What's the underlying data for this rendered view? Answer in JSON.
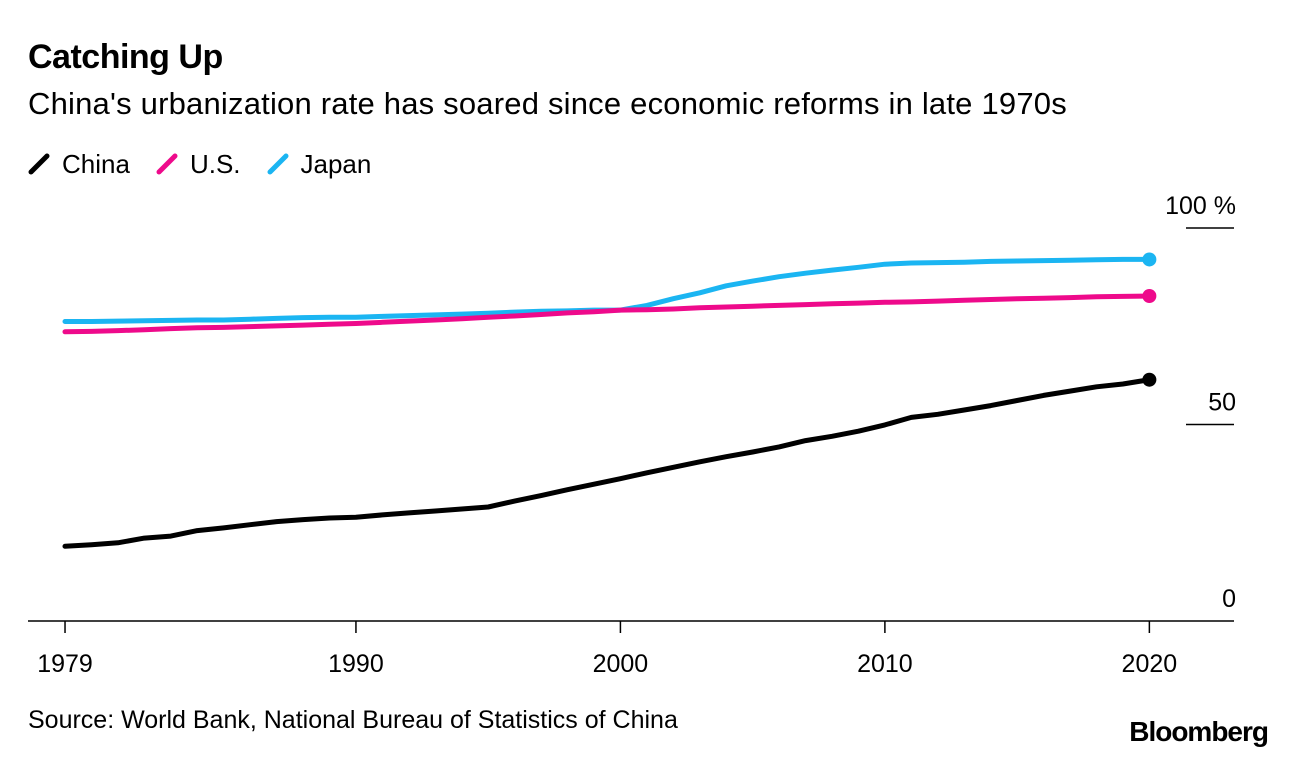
{
  "header": {
    "title": "Catching Up",
    "subtitle": "China's urbanization rate has soared since economic reforms in late 1970s"
  },
  "footer": {
    "source": "Source: World Bank, National Bureau of Statistics of China",
    "logo": "Bloomberg"
  },
  "chart_data": {
    "type": "line",
    "title": "Catching Up",
    "subtitle": "China's urbanization rate has soared since economic reforms in late 1970s",
    "xlabel": "",
    "ylabel": "",
    "xlim": [
      1977.6,
      2023.2
    ],
    "ylim": [
      0,
      100
    ],
    "x_ticks": [
      1979,
      1990,
      2000,
      2010,
      2020
    ],
    "x_tick_labels": [
      "1979",
      "1990",
      "2000",
      "2010",
      "2020"
    ],
    "y_ticks": [
      0,
      50,
      100
    ],
    "y_tick_labels": [
      "0",
      "50",
      "100 %"
    ],
    "grid": false,
    "legend_position": "top-left",
    "x": [
      1979,
      1980,
      1981,
      1982,
      1983,
      1984,
      1985,
      1986,
      1987,
      1988,
      1989,
      1990,
      1991,
      1992,
      1993,
      1994,
      1995,
      1996,
      1997,
      1998,
      1999,
      2000,
      2001,
      2002,
      2003,
      2004,
      2005,
      2006,
      2007,
      2008,
      2009,
      2010,
      2011,
      2012,
      2013,
      2014,
      2015,
      2016,
      2017,
      2018,
      2019,
      2020
    ],
    "series": [
      {
        "name": "China",
        "color": "#000000",
        "values": [
          19.0,
          19.4,
          19.9,
          21.1,
          21.6,
          23.0,
          23.7,
          24.5,
          25.3,
          25.8,
          26.2,
          26.4,
          27.0,
          27.5,
          28.0,
          28.5,
          29.0,
          30.5,
          31.9,
          33.4,
          34.8,
          36.2,
          37.7,
          39.1,
          40.5,
          41.8,
          43.0,
          44.3,
          45.9,
          47.0,
          48.3,
          49.9,
          51.8,
          52.6,
          53.7,
          54.8,
          56.1,
          57.4,
          58.5,
          59.6,
          60.3,
          61.4
        ]
      },
      {
        "name": "U.S.",
        "color": "#EE0A8B",
        "values": [
          73.6,
          73.7,
          73.9,
          74.1,
          74.4,
          74.6,
          74.7,
          74.9,
          75.1,
          75.3,
          75.5,
          75.7,
          76.0,
          76.3,
          76.6,
          76.9,
          77.3,
          77.6,
          78.0,
          78.4,
          78.7,
          79.1,
          79.2,
          79.4,
          79.7,
          79.9,
          80.1,
          80.3,
          80.5,
          80.7,
          80.9,
          81.1,
          81.2,
          81.4,
          81.6,
          81.8,
          82.0,
          82.1,
          82.3,
          82.5,
          82.6,
          82.7
        ]
      },
      {
        "name": "Japan",
        "color": "#1BB5F2",
        "values": [
          76.2,
          76.2,
          76.3,
          76.4,
          76.5,
          76.6,
          76.6,
          76.8,
          77.0,
          77.2,
          77.3,
          77.3,
          77.5,
          77.7,
          77.9,
          78.1,
          78.3,
          78.6,
          78.8,
          78.9,
          79.1,
          79.1,
          80.3,
          82.0,
          83.5,
          85.3,
          86.5,
          87.6,
          88.5,
          89.3,
          90.0,
          90.8,
          91.1,
          91.2,
          91.3,
          91.5,
          91.6,
          91.7,
          91.8,
          91.9,
          92.0,
          92.0
        ]
      }
    ]
  }
}
